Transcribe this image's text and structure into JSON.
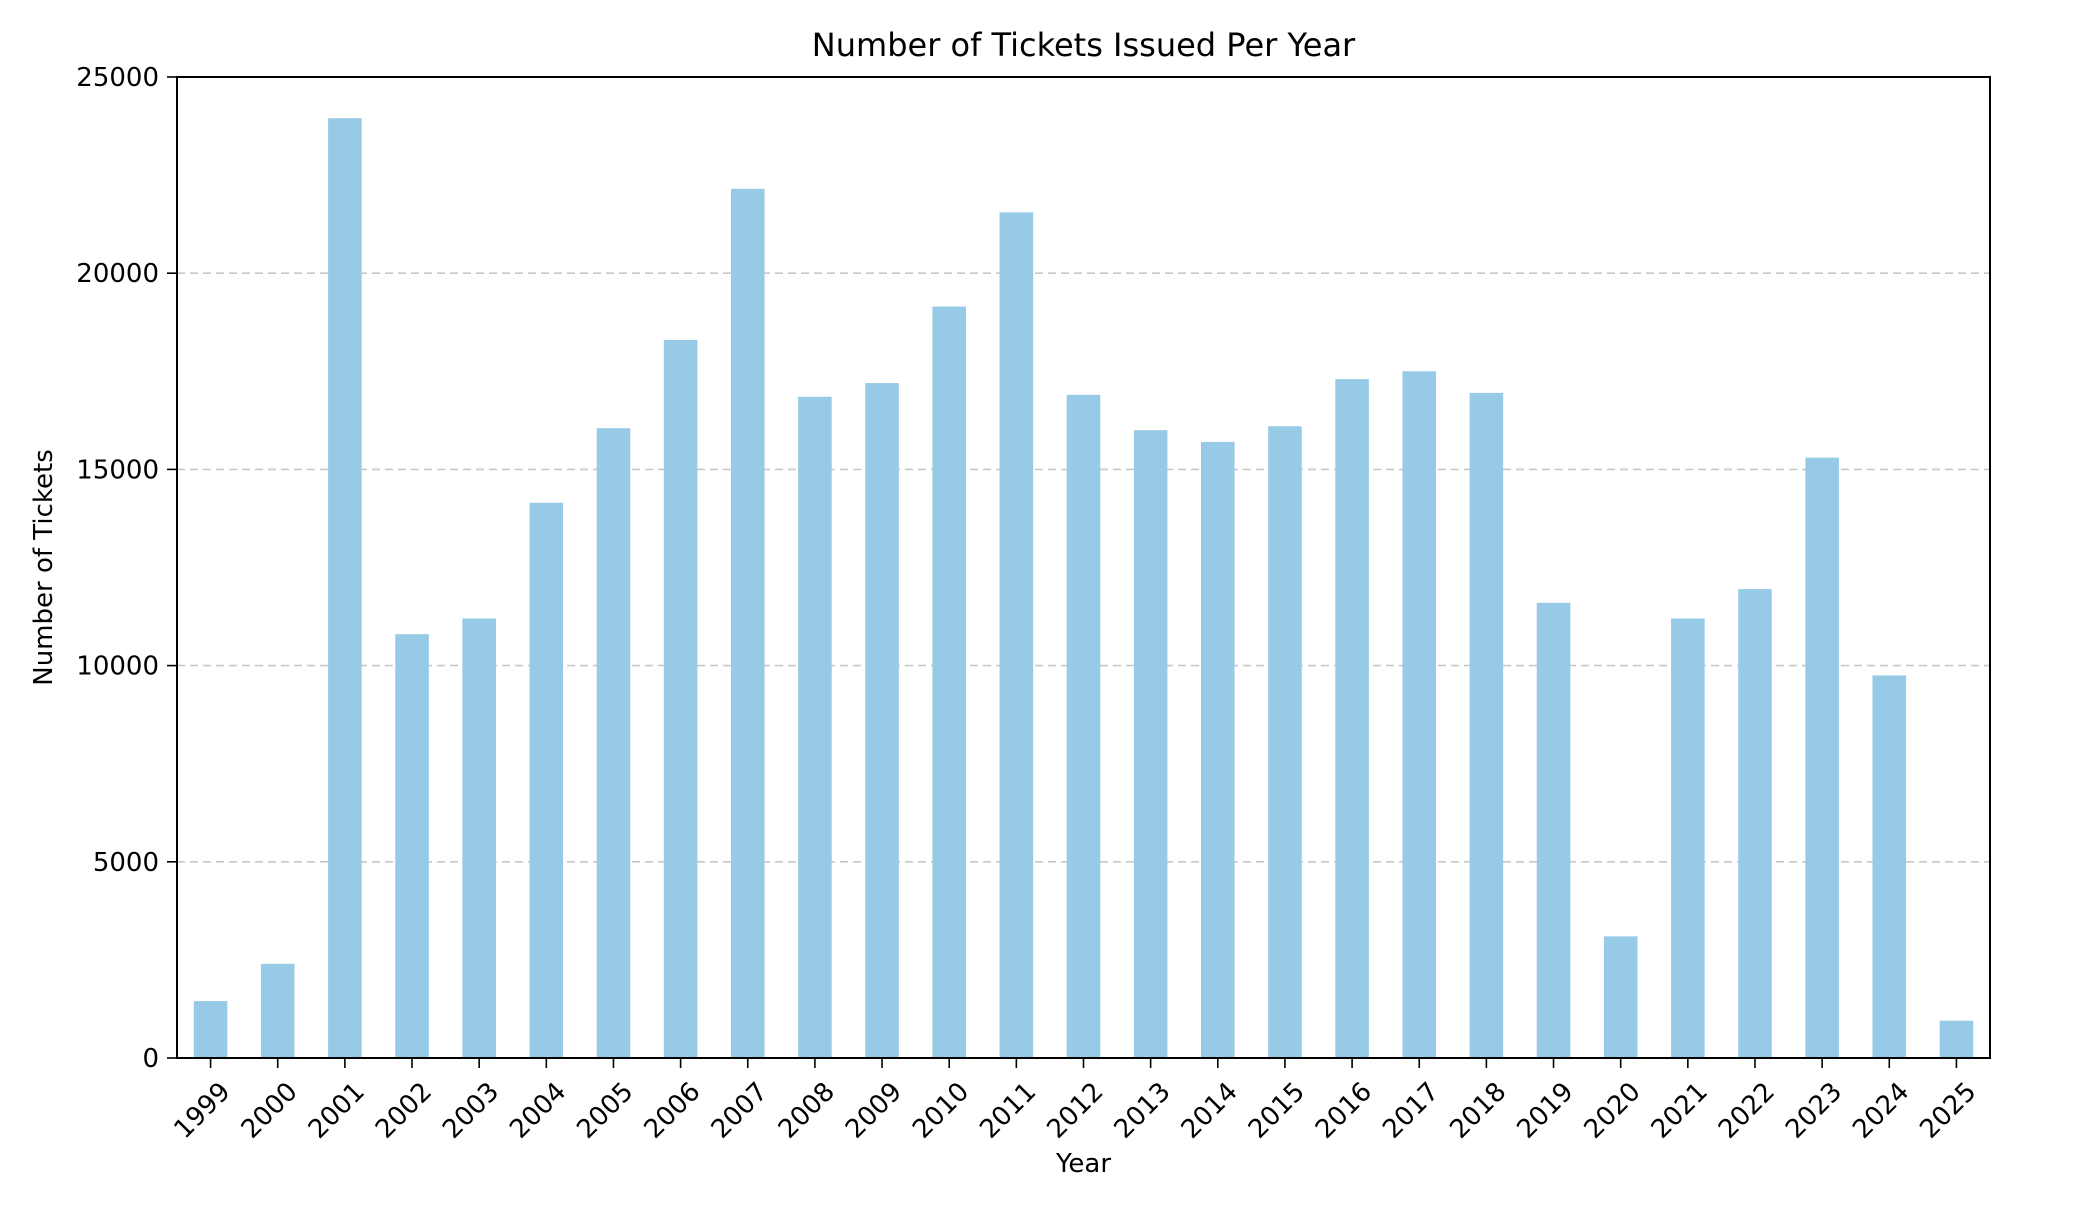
{
  "chart_data": {
    "type": "bar",
    "title": "Number of Tickets Issued Per Year",
    "xlabel": "Year",
    "ylabel": "Number of Tickets",
    "categories": [
      "1999",
      "2000",
      "2001",
      "2002",
      "2003",
      "2004",
      "2005",
      "2006",
      "2007",
      "2008",
      "2009",
      "2010",
      "2011",
      "2012",
      "2013",
      "2014",
      "2015",
      "2016",
      "2017",
      "2018",
      "2019",
      "2020",
      "2021",
      "2022",
      "2023",
      "2024",
      "2025"
    ],
    "values": [
      1450,
      2400,
      23950,
      10800,
      11200,
      14150,
      16050,
      18300,
      22150,
      16850,
      17200,
      19150,
      21550,
      16900,
      16000,
      15700,
      16100,
      17300,
      17500,
      16950,
      11600,
      3100,
      11200,
      11950,
      15300,
      9750,
      950
    ],
    "ylim": [
      0,
      25000
    ],
    "yticks": [
      0,
      5000,
      10000,
      15000,
      20000,
      25000
    ],
    "ytick_labels": [
      "0",
      "5000",
      "10000",
      "15000",
      "20000",
      "25000"
    ],
    "grid": "y-dashed",
    "legend": "none",
    "colors": {
      "bar": "#97cae6",
      "grid": "#c8c8c8",
      "axis": "#000000"
    }
  }
}
